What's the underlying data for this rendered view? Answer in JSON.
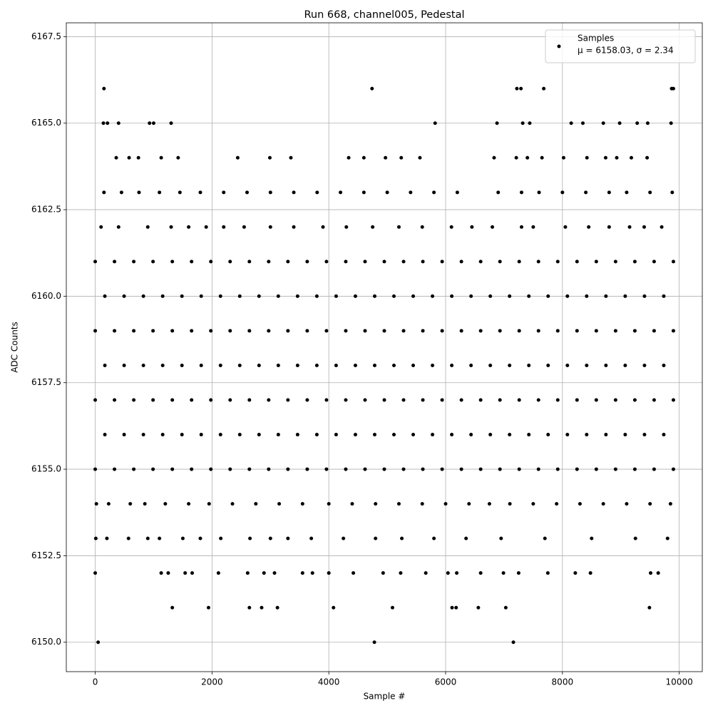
{
  "chart_data": {
    "type": "scatter",
    "title": "Run 668, channel005, Pedestal",
    "x_label": "Sample #",
    "y_label": "ADC Counts",
    "xlim": [
      -495,
      10395
    ],
    "ylim": [
      6149.15,
      6167.9
    ],
    "xticks": [
      0,
      2000,
      4000,
      6000,
      8000,
      10000
    ],
    "yticks": [
      {
        "value": 6150,
        "label": "6150.0"
      },
      {
        "value": 6152.5,
        "label": "6152.5"
      },
      {
        "value": 6155,
        "label": "6155.0"
      },
      {
        "value": 6157.5,
        "label": "6157.5"
      },
      {
        "value": 6160,
        "label": "6160.0"
      },
      {
        "value": 6162.5,
        "label": "6162.5"
      },
      {
        "value": 6165,
        "label": "6165.0"
      },
      {
        "value": 6167.5,
        "label": "6167.5"
      }
    ],
    "grid": true,
    "legend_loc": "upper right",
    "legend_note": "μ = 6158.03, σ = 2.34",
    "series": [
      {
        "name": "Samples",
        "color": "#000000",
        "x": [
          50,
          4780,
          7160,
          1320,
          1940,
          2640,
          2850,
          3120,
          4080,
          5090,
          6110,
          6180,
          6560,
          7030,
          9490,
          0,
          1130,
          1250,
          1540,
          1660,
          2110,
          2610,
          2890,
          3070,
          3550,
          3720,
          4000,
          4420,
          4930,
          5230,
          5660,
          6040,
          6190,
          6600,
          6990,
          7250,
          7750,
          8220,
          8480,
          9510,
          9640,
          10,
          200,
          570,
          900,
          1100,
          1500,
          1800,
          2150,
          2650,
          3000,
          3300,
          3700,
          4250,
          4800,
          5250,
          5800,
          6350,
          6950,
          7700,
          8500,
          9250,
          9800,
          20,
          230,
          600,
          850,
          1200,
          1600,
          1950,
          2350,
          2750,
          3150,
          3550,
          4000,
          4400,
          4800,
          5200,
          5600,
          6000,
          6400,
          6750,
          7100,
          7500,
          7900,
          8300,
          8700,
          9100,
          9500,
          9850,
          0,
          330,
          660,
          990,
          1320,
          1650,
          1980,
          2310,
          2640,
          2970,
          3300,
          3630,
          3960,
          4290,
          4620,
          4950,
          5280,
          5610,
          5940,
          6270,
          6600,
          6930,
          7260,
          7590,
          7920,
          8250,
          8580,
          8910,
          9240,
          9570,
          9900,
          165,
          495,
          825,
          1155,
          1485,
          1815,
          2145,
          2475,
          2805,
          3135,
          3465,
          3795,
          4125,
          4455,
          4785,
          5115,
          5445,
          5775,
          6105,
          6435,
          6765,
          7095,
          7425,
          7755,
          8085,
          8415,
          8745,
          9075,
          9405,
          9735,
          0,
          330,
          660,
          990,
          1320,
          1650,
          1980,
          2310,
          2640,
          2970,
          3300,
          3630,
          3960,
          4290,
          4620,
          4950,
          5280,
          5610,
          5940,
          6270,
          6600,
          6930,
          7260,
          7590,
          7920,
          8250,
          8580,
          8910,
          9240,
          9570,
          9900,
          165,
          495,
          825,
          1155,
          1485,
          1815,
          2145,
          2475,
          2805,
          3135,
          3465,
          3795,
          4125,
          4455,
          4785,
          5115,
          5445,
          5775,
          6105,
          6435,
          6765,
          7095,
          7425,
          7755,
          8085,
          8415,
          8745,
          9075,
          9405,
          9735,
          0,
          330,
          660,
          990,
          1320,
          1650,
          1980,
          2310,
          2640,
          2970,
          3300,
          3630,
          3960,
          4290,
          4620,
          4950,
          5280,
          5610,
          5940,
          6270,
          6600,
          6930,
          7260,
          7590,
          7920,
          8250,
          8580,
          8910,
          9240,
          9570,
          9900,
          165,
          495,
          825,
          1155,
          1485,
          1815,
          2145,
          2475,
          2805,
          3135,
          3465,
          3795,
          4125,
          4455,
          4785,
          5115,
          5445,
          5775,
          6105,
          6435,
          6765,
          7095,
          7425,
          7755,
          8085,
          8415,
          8745,
          9075,
          9405,
          9735,
          0,
          330,
          660,
          990,
          1320,
          1650,
          1980,
          2310,
          2640,
          2970,
          3300,
          3630,
          3960,
          4290,
          4620,
          4950,
          5280,
          5610,
          5940,
          6270,
          6600,
          6930,
          7260,
          7590,
          7920,
          8250,
          8580,
          8910,
          9240,
          9570,
          9900,
          100,
          400,
          900,
          1300,
          1600,
          1900,
          2200,
          2550,
          3000,
          3400,
          3900,
          4300,
          4750,
          5200,
          5600,
          6100,
          6450,
          6800,
          7300,
          7500,
          8050,
          8450,
          8800,
          9150,
          9400,
          9700,
          150,
          450,
          750,
          1100,
          1450,
          1800,
          2200,
          2600,
          3000,
          3400,
          3800,
          4200,
          4600,
          5000,
          5400,
          5800,
          6200,
          6900,
          7300,
          7600,
          8000,
          8400,
          8800,
          9100,
          9500,
          9880,
          360,
          580,
          740,
          1130,
          1420,
          2440,
          2990,
          3350,
          4340,
          4600,
          4970,
          5240,
          5560,
          6830,
          7210,
          7400,
          7650,
          8020,
          8420,
          8740,
          8930,
          9180,
          9450,
          140,
          210,
          400,
          930,
          1000,
          1300,
          5820,
          6880,
          7320,
          7440,
          8150,
          8350,
          8700,
          8980,
          9280,
          9460,
          9860,
          150,
          4740,
          7220,
          7290,
          7680,
          9870,
          9900
        ],
        "values": [
          6150,
          6150,
          6150,
          6151,
          6151,
          6151,
          6151,
          6151,
          6151,
          6151,
          6151,
          6151,
          6151,
          6151,
          6151,
          6152,
          6152,
          6152,
          6152,
          6152,
          6152,
          6152,
          6152,
          6152,
          6152,
          6152,
          6152,
          6152,
          6152,
          6152,
          6152,
          6152,
          6152,
          6152,
          6152,
          6152,
          6152,
          6152,
          6152,
          6152,
          6152,
          6153,
          6153,
          6153,
          6153,
          6153,
          6153,
          6153,
          6153,
          6153,
          6153,
          6153,
          6153,
          6153,
          6153,
          6153,
          6153,
          6153,
          6153,
          6153,
          6153,
          6153,
          6153,
          6154,
          6154,
          6154,
          6154,
          6154,
          6154,
          6154,
          6154,
          6154,
          6154,
          6154,
          6154,
          6154,
          6154,
          6154,
          6154,
          6154,
          6154,
          6154,
          6154,
          6154,
          6154,
          6154,
          6154,
          6154,
          6154,
          6154,
          6155,
          6155,
          6155,
          6155,
          6155,
          6155,
          6155,
          6155,
          6155,
          6155,
          6155,
          6155,
          6155,
          6155,
          6155,
          6155,
          6155,
          6155,
          6155,
          6155,
          6155,
          6155,
          6155,
          6155,
          6155,
          6155,
          6155,
          6155,
          6155,
          6155,
          6155,
          6156,
          6156,
          6156,
          6156,
          6156,
          6156,
          6156,
          6156,
          6156,
          6156,
          6156,
          6156,
          6156,
          6156,
          6156,
          6156,
          6156,
          6156,
          6156,
          6156,
          6156,
          6156,
          6156,
          6156,
          6156,
          6156,
          6156,
          6156,
          6156,
          6156,
          6157,
          6157,
          6157,
          6157,
          6157,
          6157,
          6157,
          6157,
          6157,
          6157,
          6157,
          6157,
          6157,
          6157,
          6157,
          6157,
          6157,
          6157,
          6157,
          6157,
          6157,
          6157,
          6157,
          6157,
          6157,
          6157,
          6157,
          6157,
          6157,
          6157,
          6157,
          6158,
          6158,
          6158,
          6158,
          6158,
          6158,
          6158,
          6158,
          6158,
          6158,
          6158,
          6158,
          6158,
          6158,
          6158,
          6158,
          6158,
          6158,
          6158,
          6158,
          6158,
          6158,
          6158,
          6158,
          6158,
          6158,
          6158,
          6158,
          6158,
          6158,
          6159,
          6159,
          6159,
          6159,
          6159,
          6159,
          6159,
          6159,
          6159,
          6159,
          6159,
          6159,
          6159,
          6159,
          6159,
          6159,
          6159,
          6159,
          6159,
          6159,
          6159,
          6159,
          6159,
          6159,
          6159,
          6159,
          6159,
          6159,
          6159,
          6159,
          6159,
          6160,
          6160,
          6160,
          6160,
          6160,
          6160,
          6160,
          6160,
          6160,
          6160,
          6160,
          6160,
          6160,
          6160,
          6160,
          6160,
          6160,
          6160,
          6160,
          6160,
          6160,
          6160,
          6160,
          6160,
          6160,
          6160,
          6160,
          6160,
          6160,
          6160,
          6161,
          6161,
          6161,
          6161,
          6161,
          6161,
          6161,
          6161,
          6161,
          6161,
          6161,
          6161,
          6161,
          6161,
          6161,
          6161,
          6161,
          6161,
          6161,
          6161,
          6161,
          6161,
          6161,
          6161,
          6161,
          6161,
          6161,
          6161,
          6161,
          6161,
          6161,
          6162,
          6162,
          6162,
          6162,
          6162,
          6162,
          6162,
          6162,
          6162,
          6162,
          6162,
          6162,
          6162,
          6162,
          6162,
          6162,
          6162,
          6162,
          6162,
          6162,
          6162,
          6162,
          6162,
          6162,
          6162,
          6162,
          6163,
          6163,
          6163,
          6163,
          6163,
          6163,
          6163,
          6163,
          6163,
          6163,
          6163,
          6163,
          6163,
          6163,
          6163,
          6163,
          6163,
          6163,
          6163,
          6163,
          6163,
          6163,
          6163,
          6163,
          6163,
          6163,
          6164,
          6164,
          6164,
          6164,
          6164,
          6164,
          6164,
          6164,
          6164,
          6164,
          6164,
          6164,
          6164,
          6164,
          6164,
          6164,
          6164,
          6164,
          6164,
          6164,
          6164,
          6164,
          6164,
          6165,
          6165,
          6165,
          6165,
          6165,
          6165,
          6165,
          6165,
          6165,
          6165,
          6165,
          6165,
          6165,
          6165,
          6165,
          6165,
          6165,
          6166,
          6166,
          6166,
          6166,
          6166,
          6166,
          6166
        ]
      }
    ]
  }
}
